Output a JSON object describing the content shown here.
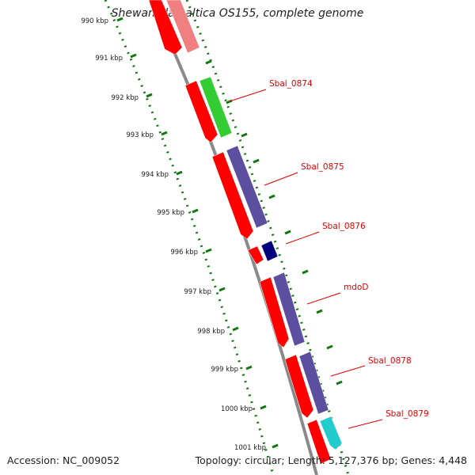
{
  "title": "Shewanella baltica OS155, complete genome",
  "accession_text": "Accession: NC_009052",
  "summary_text": "Topology: circular; Length: 5,127,376 bp; Genes: 4,448",
  "scale_labels": [
    "990 kbp",
    "991 kbp",
    "992 kbp",
    "993 kbp",
    "994 kbp",
    "995 kbp",
    "996 kbp",
    "997 kbp",
    "998 kbp",
    "999 kbp",
    "1000 kbp",
    "1001 kbp"
  ],
  "gene_labels": [
    "Sbal_0874",
    "Sbal_0875",
    "Sbal_0876",
    "mdoD",
    "Sbal_0878",
    "Sbal_0879"
  ],
  "colors": {
    "cds": "#ff0000",
    "pink": "#f08080",
    "green": "#33cc33",
    "purple": "#5c4f9f",
    "navy": "#00007f",
    "cyan": "#22cccc",
    "ticks": "#117711",
    "backbone": "#8a8a8a",
    "label": "#e00000"
  }
}
